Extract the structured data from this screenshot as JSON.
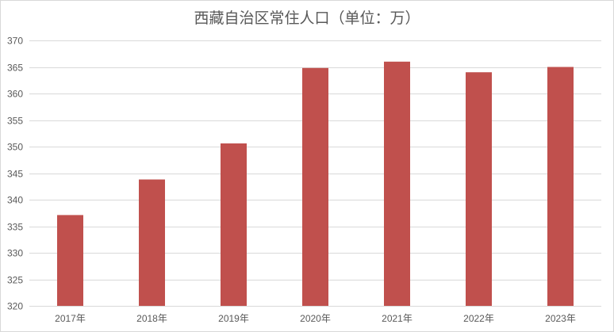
{
  "chart_data": {
    "type": "bar",
    "title": "西藏自治区常住人口（单位：万）",
    "xlabel": "",
    "ylabel": "",
    "categories": [
      "2017年",
      "2018年",
      "2019年",
      "2020年",
      "2021年",
      "2022年",
      "2023年"
    ],
    "values": [
      337.1,
      343.8,
      350.6,
      364.8,
      366.0,
      364.0,
      365.0
    ],
    "ylim": [
      320,
      370
    ],
    "yticks": [
      320,
      325,
      330,
      335,
      340,
      345,
      350,
      355,
      360,
      365,
      370
    ],
    "grid": true,
    "legend": "none",
    "bar_color": "#c0504d",
    "grid_color": "#d9d9d9"
  }
}
